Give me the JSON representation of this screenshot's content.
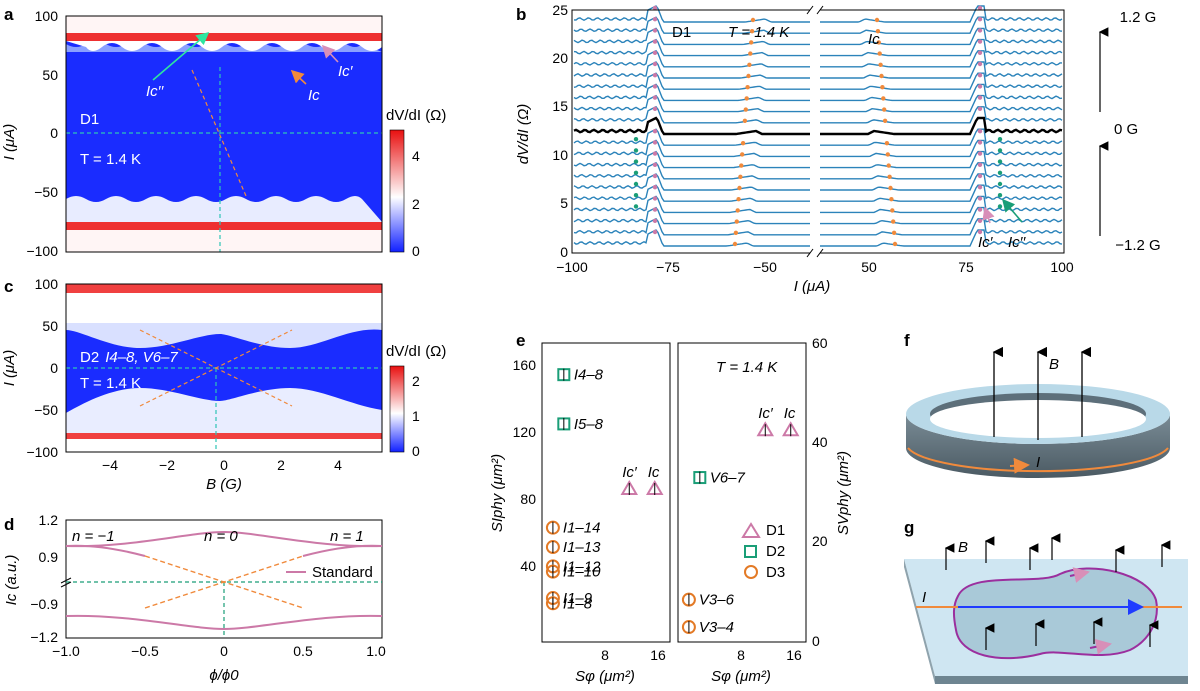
{
  "panels": {
    "a": {
      "label": "a",
      "device": "D1",
      "temp": "T = 1.4 K",
      "ylabel": "I (μA)",
      "yticks": [
        "100",
        "50",
        "0",
        "−50",
        "−100"
      ],
      "cbar_label": "dV/dI (Ω)",
      "cbar_ticks": [
        "4",
        "2",
        "0"
      ],
      "ann_ic2": "Ic′′",
      "ann_ic1": "Ic′",
      "ann_ic": "Ic"
    },
    "b": {
      "label": "b",
      "device": "D1",
      "temp": "T = 1.4 K",
      "ann_ic": "Ic",
      "ann_ic1": "Ic′",
      "ann_ic2": "Ic′′",
      "ylabel": "dV/dI (Ω)",
      "xlabel": "I (μA)",
      "yticks": [
        "25",
        "20",
        "15",
        "10",
        "5",
        "0"
      ],
      "xticks": [
        "−100",
        "−75",
        "−50",
        "50",
        "75",
        "100"
      ],
      "field_top": "1.2 G",
      "field_mid": "0 G",
      "field_bot": "−1.2 G"
    },
    "c": {
      "label": "c",
      "device": "D2",
      "leads": "I4–8, V6–7",
      "temp": "T = 1.4 K",
      "ylabel": "I (μA)",
      "yticks": [
        "100",
        "50",
        "0",
        "−50",
        "−100"
      ],
      "xticks": [
        "−4",
        "−2",
        "0",
        "2",
        "4"
      ],
      "xlabel": "B (G)",
      "cbar_label": "dV/dI (Ω)",
      "cbar_ticks": [
        "2",
        "1",
        "0"
      ]
    },
    "d": {
      "label": "d",
      "n_minus": "n = −1",
      "n_zero": "n = 0",
      "n_plus": "n = 1",
      "legend": "Standard",
      "ylabel": "Ic (a.u.)",
      "yticks": [
        "1.2",
        "0.9",
        "−0.9",
        "−1.2"
      ],
      "xticks": [
        "−1.0",
        "−0.5",
        "0",
        "0.5",
        "1.0"
      ],
      "xlabel": "ϕ/ϕ0"
    },
    "e": {
      "label": "e",
      "temp": "T = 1.4 K",
      "ylabel_left": "SIphy (μm²)",
      "ylabel_right": "SVphy (μm²)",
      "xlabel": "Sφ (μm²)",
      "yticks_left": [
        "160",
        "120",
        "80",
        "40"
      ],
      "yticks_right": [
        "60",
        "40",
        "20",
        "0"
      ],
      "xticks_left": [
        "8",
        "16"
      ],
      "xticks_right": [
        "8",
        "16"
      ],
      "legend": [
        "D1",
        "D2",
        "D3"
      ],
      "points_left": [
        {
          "label": "I4–8",
          "S_phi": 3,
          "S_phy": 152,
          "device": "D2"
        },
        {
          "label": "I5–8",
          "S_phi": 3,
          "S_phy": 124,
          "device": "D2"
        },
        {
          "label": "Ic′",
          "S_phi": 12,
          "S_phy": 87,
          "device": "D1"
        },
        {
          "label": "Ic",
          "S_phi": 15.5,
          "S_phy": 87,
          "device": "D1"
        },
        {
          "label": "I1–14",
          "S_phi": 1.5,
          "S_phy": 65,
          "device": "D3"
        },
        {
          "label": "I1–13",
          "S_phi": 1.5,
          "S_phy": 54,
          "device": "D3"
        },
        {
          "label": "I1–12",
          "S_phi": 1.5,
          "S_phy": 43,
          "device": "D3"
        },
        {
          "label": "I1–10",
          "S_phi": 1.5,
          "S_phy": 40,
          "device": "D3"
        },
        {
          "label": "I1–9",
          "S_phi": 1.5,
          "S_phy": 25,
          "device": "D3"
        },
        {
          "label": "I1–8",
          "S_phi": 1.5,
          "S_phy": 22,
          "device": "D3"
        }
      ],
      "points_right": [
        {
          "label": "Ic′",
          "S_phi": 12,
          "S_phy": 42.5,
          "device": "D1"
        },
        {
          "label": "Ic",
          "S_phi": 15.5,
          "S_phy": 42.5,
          "device": "D1"
        },
        {
          "label": "V6–7",
          "S_phi": 3,
          "S_phy": 33,
          "device": "D2"
        },
        {
          "label": "V3–6",
          "S_phi": 1.5,
          "S_phy": 8.5,
          "device": "D3"
        },
        {
          "label": "V3–4",
          "S_phi": 1.5,
          "S_phy": 3,
          "device": "D3"
        }
      ]
    },
    "f": {
      "label": "f",
      "B": "B",
      "I": "I"
    },
    "g": {
      "label": "g",
      "B": "B",
      "I": "I"
    }
  },
  "colors": {
    "red": "#e8252a",
    "blue": "#1f3bff",
    "teal_line": "#2ec4b6",
    "orange": "#f08a3c",
    "pink": "#cc79a7",
    "green": "#1a9e77",
    "curve": "#2b83ba",
    "ring_top": "#b9d9e8",
    "ring_side": "#5d6f7a"
  }
}
